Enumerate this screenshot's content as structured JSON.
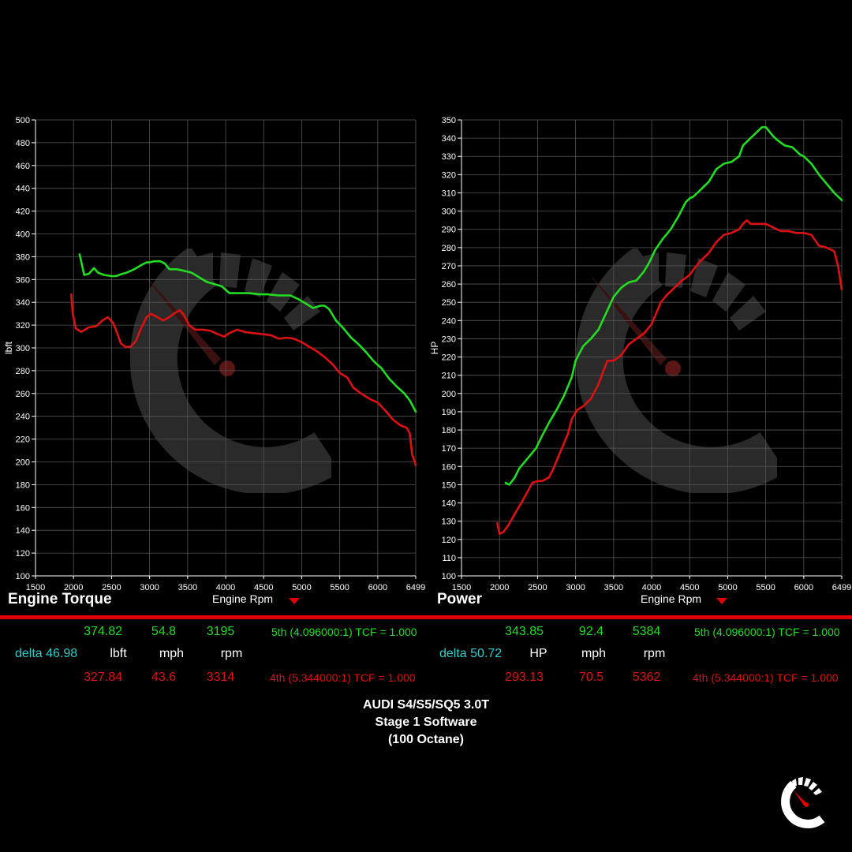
{
  "colors": {
    "run1": "#22dd22",
    "run2": "#dd1111",
    "delta": "#33cccc",
    "accent": "#e00000",
    "grid": "#555555",
    "axis": "#ffffff"
  },
  "torque_panel": {
    "title": "Engine Torque",
    "xlabel": "Engine Rpm",
    "ylabel": "lbft",
    "readout": {
      "run1": {
        "value": "374.82",
        "mph": "54.8",
        "rpm": "3195",
        "gear": "5th (4.096000:1) TCF = 1.000"
      },
      "delta": "delta 46.98",
      "units": {
        "value": "lbft",
        "mph": "mph",
        "rpm": "rpm"
      },
      "run2": {
        "value": "327.84",
        "mph": "43.6",
        "rpm": "3314",
        "gear": "4th (5.344000:1) TCF = 1.000"
      }
    }
  },
  "power_panel": {
    "title": "Power",
    "xlabel": "Engine Rpm",
    "ylabel": "HP",
    "readout": {
      "run1": {
        "value": "343.85",
        "mph": "92.4",
        "rpm": "5384",
        "gear": "5th (4.096000:1) TCF = 1.000"
      },
      "delta": "delta 50.72",
      "units": {
        "value": "HP",
        "mph": "mph",
        "rpm": "rpm"
      },
      "run2": {
        "value": "293.13",
        "mph": "70.5",
        "rpm": "5362",
        "gear": "4th (5.344000:1) TCF = 1.000"
      }
    }
  },
  "footer": {
    "line1": "AUDI S4/S5/SQ5 3.0T",
    "line2": "Stage 1 Software",
    "line3": "(100 Octane)"
  },
  "chart_data": [
    {
      "type": "line",
      "title": "Engine Torque",
      "xlabel": "Engine Rpm",
      "ylabel": "lbft",
      "xlim": [
        1500,
        6499
      ],
      "ylim": [
        100,
        500
      ],
      "x_ticks": [
        "1500",
        "2000",
        "2500",
        "3000",
        "3500",
        "4000",
        "4500",
        "5000",
        "5500",
        "6000",
        "6499"
      ],
      "y_ticks": [
        "100",
        "120",
        "140",
        "160",
        "180",
        "200",
        "220",
        "240",
        "260",
        "280",
        "300",
        "320",
        "340",
        "360",
        "380",
        "400",
        "420",
        "440",
        "460",
        "480",
        "500"
      ],
      "grid": true,
      "series": [
        {
          "color": "#22dd22",
          "points": [
            [
              2080,
              382
            ],
            [
              2140,
              364
            ],
            [
              2200,
              365
            ],
            [
              2270,
              370
            ],
            [
              2320,
              366
            ],
            [
              2400,
              364
            ],
            [
              2500,
              363
            ],
            [
              2560,
              363
            ],
            [
              2640,
              365
            ],
            [
              2700,
              366
            ],
            [
              2800,
              369
            ],
            [
              2900,
              373
            ],
            [
              2960,
              375
            ],
            [
              3000,
              375
            ],
            [
              3060,
              376
            ],
            [
              3140,
              376
            ],
            [
              3200,
              374
            ],
            [
              3260,
              369
            ],
            [
              3350,
              369
            ],
            [
              3430,
              368
            ],
            [
              3550,
              366
            ],
            [
              3650,
              362
            ],
            [
              3750,
              358
            ],
            [
              3850,
              356
            ],
            [
              3950,
              354
            ],
            [
              4050,
              348
            ],
            [
              4150,
              348
            ],
            [
              4300,
              348
            ],
            [
              4450,
              347
            ],
            [
              4550,
              347
            ],
            [
              4700,
              346
            ],
            [
              4850,
              346
            ],
            [
              4950,
              343
            ],
            [
              5050,
              339
            ],
            [
              5150,
              335
            ],
            [
              5250,
              337
            ],
            [
              5300,
              337
            ],
            [
              5360,
              334
            ],
            [
              5450,
              324
            ],
            [
              5550,
              317
            ],
            [
              5650,
              309
            ],
            [
              5750,
              303
            ],
            [
              5850,
              296
            ],
            [
              5950,
              288
            ],
            [
              6050,
              282
            ],
            [
              6150,
              273
            ],
            [
              6250,
              266
            ],
            [
              6350,
              260
            ],
            [
              6420,
              254
            ],
            [
              6499,
              244
            ]
          ]
        },
        {
          "color": "#dd1111",
          "points": [
            [
              1970,
              347
            ],
            [
              1990,
              330
            ],
            [
              2030,
              317
            ],
            [
              2100,
              314
            ],
            [
              2200,
              318
            ],
            [
              2300,
              319
            ],
            [
              2380,
              324
            ],
            [
              2450,
              327
            ],
            [
              2520,
              322
            ],
            [
              2580,
              312
            ],
            [
              2620,
              304
            ],
            [
              2680,
              301
            ],
            [
              2750,
              301
            ],
            [
              2820,
              306
            ],
            [
              2880,
              316
            ],
            [
              2960,
              327
            ],
            [
              3020,
              330
            ],
            [
              3100,
              327
            ],
            [
              3180,
              324
            ],
            [
              3260,
              327
            ],
            [
              3340,
              331
            ],
            [
              3400,
              333
            ],
            [
              3450,
              329
            ],
            [
              3520,
              320
            ],
            [
              3600,
              316
            ],
            [
              3700,
              316
            ],
            [
              3800,
              315
            ],
            [
              3900,
              312
            ],
            [
              3980,
              310
            ],
            [
              4050,
              313
            ],
            [
              4150,
              316
            ],
            [
              4250,
              314
            ],
            [
              4350,
              313
            ],
            [
              4500,
              312
            ],
            [
              4600,
              311
            ],
            [
              4700,
              308
            ],
            [
              4800,
              309
            ],
            [
              4900,
              308
            ],
            [
              5000,
              305
            ],
            [
              5100,
              301
            ],
            [
              5200,
              297
            ],
            [
              5300,
              292
            ],
            [
              5400,
              286
            ],
            [
              5500,
              278
            ],
            [
              5600,
              274
            ],
            [
              5680,
              265
            ],
            [
              5780,
              260
            ],
            [
              5900,
              255
            ],
            [
              6000,
              252
            ],
            [
              6100,
              245
            ],
            [
              6200,
              237
            ],
            [
              6300,
              232
            ],
            [
              6380,
              230
            ],
            [
              6420,
              225
            ],
            [
              6450,
              207
            ],
            [
              6499,
              197
            ]
          ]
        }
      ]
    },
    {
      "type": "line",
      "title": "Power",
      "xlabel": "Engine Rpm",
      "ylabel": "HP",
      "xlim": [
        1500,
        6499
      ],
      "ylim": [
        100,
        350
      ],
      "x_ticks": [
        "1500",
        "2000",
        "2500",
        "3000",
        "3500",
        "4000",
        "4500",
        "5000",
        "5500",
        "6000",
        "6499"
      ],
      "y_ticks": [
        "100",
        "110",
        "120",
        "130",
        "140",
        "150",
        "160",
        "170",
        "180",
        "190",
        "200",
        "210",
        "220",
        "230",
        "240",
        "250",
        "260",
        "270",
        "280",
        "290",
        "300",
        "310",
        "320",
        "330",
        "340",
        "350"
      ],
      "grid": true,
      "series": [
        {
          "color": "#22dd22",
          "points": [
            [
              2080,
              151
            ],
            [
              2130,
              150
            ],
            [
              2200,
              154
            ],
            [
              2260,
              159
            ],
            [
              2320,
              162
            ],
            [
              2400,
              166
            ],
            [
              2480,
              170
            ],
            [
              2550,
              176
            ],
            [
              2650,
              184
            ],
            [
              2750,
              191
            ],
            [
              2850,
              199
            ],
            [
              2950,
              209
            ],
            [
              3000,
              218
            ],
            [
              3100,
              226
            ],
            [
              3200,
              230
            ],
            [
              3300,
              235
            ],
            [
              3400,
              244
            ],
            [
              3500,
              253
            ],
            [
              3600,
              258
            ],
            [
              3700,
              261
            ],
            [
              3800,
              262
            ],
            [
              3900,
              267
            ],
            [
              3970,
              272
            ],
            [
              4050,
              279
            ],
            [
              4150,
              285
            ],
            [
              4250,
              290
            ],
            [
              4350,
              297
            ],
            [
              4450,
              305
            ],
            [
              4500,
              307
            ],
            [
              4550,
              308
            ],
            [
              4650,
              312
            ],
            [
              4750,
              316
            ],
            [
              4850,
              323
            ],
            [
              4950,
              326
            ],
            [
              5050,
              327
            ],
            [
              5150,
              330
            ],
            [
              5200,
              336
            ],
            [
              5300,
              340
            ],
            [
              5400,
              344
            ],
            [
              5450,
              346
            ],
            [
              5500,
              346
            ],
            [
              5600,
              341
            ],
            [
              5650,
              339
            ],
            [
              5750,
              336
            ],
            [
              5850,
              335
            ],
            [
              5950,
              331
            ],
            [
              6000,
              330
            ],
            [
              6100,
              326
            ],
            [
              6200,
              320
            ],
            [
              6300,
              315
            ],
            [
              6400,
              310
            ],
            [
              6499,
              306
            ]
          ]
        },
        {
          "color": "#dd1111",
          "points": [
            [
              1970,
              129
            ],
            [
              2000,
              123
            ],
            [
              2050,
              124
            ],
            [
              2120,
              128
            ],
            [
              2200,
              134
            ],
            [
              2300,
              141
            ],
            [
              2380,
              147
            ],
            [
              2430,
              151
            ],
            [
              2500,
              152
            ],
            [
              2560,
              152
            ],
            [
              2650,
              154
            ],
            [
              2700,
              158
            ],
            [
              2800,
              168
            ],
            [
              2900,
              178
            ],
            [
              2950,
              186
            ],
            [
              3020,
              191
            ],
            [
              3100,
              193
            ],
            [
              3200,
              197
            ],
            [
              3300,
              205
            ],
            [
              3380,
              214
            ],
            [
              3420,
              218
            ],
            [
              3500,
              218
            ],
            [
              3600,
              221
            ],
            [
              3700,
              227
            ],
            [
              3800,
              230
            ],
            [
              3900,
              233
            ],
            [
              4000,
              238
            ],
            [
              4050,
              243
            ],
            [
              4120,
              250
            ],
            [
              4200,
              254
            ],
            [
              4300,
              258
            ],
            [
              4400,
              262
            ],
            [
              4500,
              265
            ],
            [
              4550,
              268
            ],
            [
              4650,
              273
            ],
            [
              4750,
              277
            ],
            [
              4850,
              283
            ],
            [
              4950,
              287
            ],
            [
              5050,
              288
            ],
            [
              5150,
              290
            ],
            [
              5200,
              293
            ],
            [
              5250,
              295
            ],
            [
              5300,
              293
            ],
            [
              5400,
              293
            ],
            [
              5500,
              293
            ],
            [
              5600,
              291
            ],
            [
              5700,
              289
            ],
            [
              5800,
              289
            ],
            [
              5900,
              288
            ],
            [
              6000,
              288
            ],
            [
              6100,
              287
            ],
            [
              6200,
              281
            ],
            [
              6300,
              280
            ],
            [
              6400,
              278
            ],
            [
              6450,
              270
            ],
            [
              6499,
              257
            ]
          ]
        }
      ]
    }
  ]
}
